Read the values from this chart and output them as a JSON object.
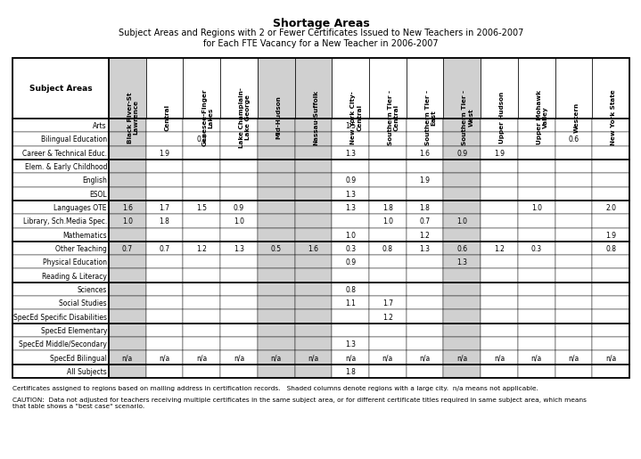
{
  "title": "Shortage Areas",
  "subtitle1": "Subject Areas and Regions with 2 or Fewer Certificates Issued to New Teachers in 2006-2007",
  "subtitle2": "for Each FTE Vacancy for a New Teacher in 2006-2007",
  "col_headers": [
    "Subject Areas",
    "Black River-St\nLawrence",
    "Central",
    "Genesee-Finger\nLakes",
    "Lake Champlain-\nLake George",
    "Mid-Hudson",
    "Nassau-Suffolk",
    "New York City-\nCentral",
    "Southern Tier -\nCentral",
    "Southern Tier -\nEast",
    "Southern Tier -\nWest",
    "Upper Hudson",
    "Upper Mohawk\nValley",
    "Western",
    "New York State"
  ],
  "shaded_cols": [
    0,
    4,
    5,
    9
  ],
  "rows": [
    {
      "label": "Arts",
      "values": [
        "",
        "",
        "",
        "",
        "",
        "",
        "1.5",
        "",
        "",
        "",
        "",
        "",
        "",
        ""
      ]
    },
    {
      "label": "Bilingual Education",
      "values": [
        "",
        "",
        "0.7",
        "",
        "",
        "",
        "",
        "",
        "",
        "",
        "",
        "",
        "0.6",
        ""
      ]
    },
    {
      "label": "Career & Technical Educ.",
      "values": [
        "",
        "1.9",
        "",
        "",
        "",
        "",
        "1.3",
        "",
        "1.6",
        "0.9",
        "1.9",
        "",
        "",
        ""
      ]
    },
    {
      "label": "Elem. & Early Childhood",
      "values": [
        "",
        "",
        "",
        "",
        "",
        "",
        "",
        "",
        "",
        "",
        "",
        "",
        "",
        ""
      ]
    },
    {
      "label": "English",
      "values": [
        "",
        "",
        "",
        "",
        "",
        "",
        "0.9",
        "",
        "1.9",
        "",
        "",
        "",
        "",
        ""
      ]
    },
    {
      "label": "ESOL",
      "values": [
        "",
        "",
        "",
        "",
        "",
        "",
        "1.3",
        "",
        "",
        "",
        "",
        "",
        "",
        ""
      ]
    },
    {
      "label": "Languages OTE",
      "values": [
        "1.6",
        "1.7",
        "1.5",
        "0.9",
        "",
        "",
        "1.3",
        "1.8",
        "1.8",
        "",
        "",
        "1.0",
        "",
        "2.0"
      ]
    },
    {
      "label": "Library, Sch.Media Spec.",
      "values": [
        "1.0",
        "1.8",
        "",
        "1.0",
        "",
        "",
        "",
        "1.0",
        "0.7",
        "1.0",
        "",
        "",
        "",
        ""
      ]
    },
    {
      "label": "Mathematics",
      "values": [
        "",
        "",
        "",
        "",
        "",
        "",
        "1.0",
        "",
        "1.2",
        "",
        "",
        "",
        "",
        "1.9"
      ]
    },
    {
      "label": "Other Teaching",
      "values": [
        "0.7",
        "0.7",
        "1.2",
        "1.3",
        "0.5",
        "1.6",
        "0.3",
        "0.8",
        "1.3",
        "0.6",
        "1.2",
        "0.3",
        "",
        "0.8"
      ]
    },
    {
      "label": "Physical Education",
      "values": [
        "",
        "",
        "",
        "",
        "",
        "",
        "0.9",
        "",
        "",
        "1.3",
        "",
        "",
        "",
        ""
      ]
    },
    {
      "label": "Reading & Literacy",
      "values": [
        "",
        "",
        "",
        "",
        "",
        "",
        "",
        "",
        "",
        "",
        "",
        "",
        "",
        ""
      ]
    },
    {
      "label": "Sciences",
      "values": [
        "",
        "",
        "",
        "",
        "",
        "",
        "0.8",
        "",
        "",
        "",
        "",
        "",
        "",
        ""
      ]
    },
    {
      "label": "Social Studies",
      "values": [
        "",
        "",
        "",
        "",
        "",
        "",
        "1.1",
        "1.7",
        "",
        "",
        "",
        "",
        "",
        ""
      ]
    },
    {
      "label": "SpecEd Specific Disabilities",
      "values": [
        "",
        "",
        "",
        "",
        "",
        "",
        "",
        "1.2",
        "",
        "",
        "",
        "",
        "",
        ""
      ]
    },
    {
      "label": "SpecEd Elementary",
      "values": [
        "",
        "",
        "",
        "",
        "",
        "",
        "",
        "",
        "",
        "",
        "",
        "",
        "",
        ""
      ]
    },
    {
      "label": "SpecEd Middle/Secondary",
      "values": [
        "",
        "",
        "",
        "",
        "",
        "",
        "1.3",
        "",
        "",
        "",
        "",
        "",
        "",
        ""
      ]
    },
    {
      "label": "SpecEd Bilingual",
      "values": [
        "n/a",
        "n/a",
        "n/a",
        "n/a",
        "n/a",
        "n/a",
        "n/a",
        "n/a",
        "n/a",
        "n/a",
        "n/a",
        "n/a",
        "n/a",
        "n/a"
      ]
    },
    {
      "label": "All Subjects",
      "values": [
        "",
        "",
        "",
        "",
        "",
        "",
        "1.8",
        "",
        "",
        "",
        "",
        "",
        "",
        ""
      ]
    }
  ],
  "section_breaks_after": [
    2,
    5,
    8,
    11,
    14,
    17
  ],
  "footnote1": "Certificates assigned to regions based on mailing address in certification records.   Shaded columns denote regions with a large city.  n/a means not applicable.",
  "footnote2": "CAUTION:  Data not adjusted for teachers receiving multiple certificates in the same subject area, or for different certificate titles required in same subject area, which means\nthat table shows a \"best case\" scenario.",
  "shaded_color": "#d0d0d0",
  "white_color": "#ffffff",
  "border_color": "#000000"
}
